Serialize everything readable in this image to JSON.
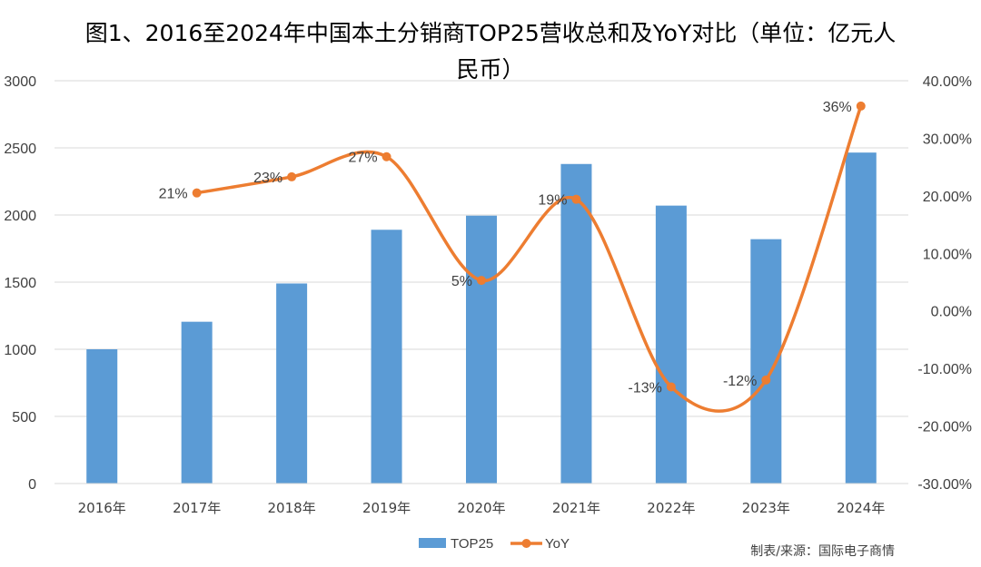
{
  "chart_data": {
    "type": "bar+line",
    "title_line1": "图1、2016至2024年中国本土分销商TOP25营收总和及YoY对比（单位：亿元人",
    "title_line2": "民币）",
    "categories": [
      "2016年",
      "2017年",
      "2018年",
      "2019年",
      "2020年",
      "2021年",
      "2022年",
      "2023年",
      "2024年"
    ],
    "series": [
      {
        "name": "TOP25",
        "type": "bar",
        "axis": "left",
        "values": [
          1000,
          1205,
          1490,
          1890,
          1995,
          2380,
          2070,
          1820,
          2465
        ]
      },
      {
        "name": "YoY",
        "type": "line",
        "axis": "right",
        "values": [
          null,
          20.5,
          23.3,
          26.8,
          5.3,
          19.4,
          -13.2,
          -12.0,
          35.6
        ],
        "labels": [
          null,
          "21%",
          "23%",
          "27%",
          "5%",
          "19%",
          "-13%",
          "-12%",
          "36%"
        ]
      }
    ],
    "y_left": {
      "min": 0,
      "max": 3000,
      "step": 500,
      "ticks": [
        "0",
        "500",
        "1000",
        "1500",
        "2000",
        "2500",
        "3000"
      ]
    },
    "y_right": {
      "min": -30,
      "max": 40,
      "step": 10,
      "ticks": [
        "-30.00%",
        "-20.00%",
        "-10.00%",
        "0.00%",
        "10.00%",
        "20.00%",
        "30.00%",
        "40.00%"
      ]
    },
    "grid": true,
    "legend": [
      "TOP25",
      "YoY"
    ],
    "legend_position": "bottom",
    "colors": {
      "bar": "#5b9bd5",
      "line": "#ed7d31",
      "grid": "#d9d9d9"
    }
  },
  "source": "制表/来源：国际电子商情"
}
